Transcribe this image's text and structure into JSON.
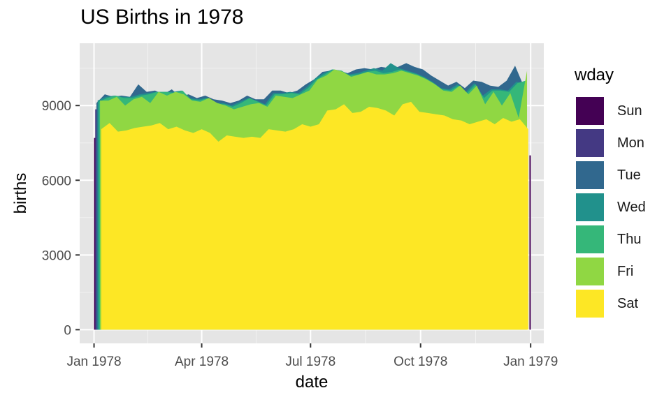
{
  "chart_data": {
    "type": "area",
    "stacked": true,
    "title": "US Births in 1978",
    "xlabel": "date",
    "ylabel": "births",
    "x_ticks": [
      "Jan 1978",
      "Apr 1978",
      "Jul 1978",
      "Oct 1978",
      "Jan 1979"
    ],
    "x_tick_dates": [
      "1978-01-01",
      "1978-04-01",
      "1978-07-01",
      "1978-10-01",
      "1979-01-01"
    ],
    "xlim": [
      "1977-12-20",
      "1979-01-12"
    ],
    "y_ticks": [
      0,
      3000,
      6000,
      9000
    ],
    "ylim": [
      -550,
      11500
    ],
    "grid": true,
    "background": "#e5e5e5",
    "legend": {
      "title": "wday",
      "placement": "right",
      "order": [
        "Sun",
        "Mon",
        "Tue",
        "Wed",
        "Thu",
        "Fri",
        "Sat"
      ]
    },
    "colors": {
      "Sun": "#440154",
      "Mon": "#443983",
      "Tue": "#31688e",
      "Wed": "#21918c",
      "Thu": "#35b779",
      "Fri": "#90d743",
      "Sat": "#fde725"
    },
    "stack_top_down": [
      "Sun",
      "Mon",
      "Tue",
      "Wed",
      "Thu",
      "Fri",
      "Sat"
    ],
    "series_summary": [
      {
        "name": "Sun",
        "values": [
          7700,
          0
        ]
      },
      {
        "name": "Mon",
        "values": [
          8850,
          9150
        ]
      },
      {
        "name": "Tue",
        "values": [
          9450,
          9500
        ]
      },
      {
        "name": "Wed",
        "values": [
          9200,
          9100
        ]
      },
      {
        "name": "Thu",
        "values": [
          9300,
          10000
        ]
      },
      {
        "name": "Fri",
        "values": [
          9200,
          10400
        ]
      },
      {
        "name": "Sat",
        "values": [
          8150,
          8050
        ]
      }
    ],
    "envelopes": {
      "Sat": [
        [
          "1978-01-07",
          8050
        ],
        [
          "1978-01-14",
          8300
        ],
        [
          "1978-01-21",
          7950
        ],
        [
          "1978-01-28",
          8000
        ],
        [
          "1978-02-04",
          8100
        ],
        [
          "1978-02-11",
          8150
        ],
        [
          "1978-02-18",
          8200
        ],
        [
          "1978-02-25",
          8300
        ],
        [
          "1978-03-04",
          8050
        ],
        [
          "1978-03-11",
          8150
        ],
        [
          "1978-03-18",
          8000
        ],
        [
          "1978-03-25",
          7900
        ],
        [
          "1978-04-01",
          8050
        ],
        [
          "1978-04-08",
          7900
        ],
        [
          "1978-04-15",
          7550
        ],
        [
          "1978-04-22",
          7800
        ],
        [
          "1978-04-29",
          7750
        ],
        [
          "1978-05-06",
          7700
        ],
        [
          "1978-05-13",
          7750
        ],
        [
          "1978-05-20",
          7700
        ],
        [
          "1978-05-27",
          8050
        ],
        [
          "1978-06-03",
          8000
        ],
        [
          "1978-06-10",
          7950
        ],
        [
          "1978-06-17",
          8050
        ],
        [
          "1978-06-24",
          8250
        ],
        [
          "1978-07-01",
          8150
        ],
        [
          "1978-07-08",
          8250
        ],
        [
          "1978-07-15",
          8800
        ],
        [
          "1978-07-22",
          8850
        ],
        [
          "1978-07-29",
          9050
        ],
        [
          "1978-08-05",
          8700
        ],
        [
          "1978-08-12",
          8750
        ],
        [
          "1978-08-19",
          8950
        ],
        [
          "1978-08-26",
          8900
        ],
        [
          "1978-09-02",
          8800
        ],
        [
          "1978-09-09",
          8600
        ],
        [
          "1978-09-16",
          9050
        ],
        [
          "1978-09-23",
          9150
        ],
        [
          "1978-09-30",
          8750
        ],
        [
          "1978-10-07",
          8700
        ],
        [
          "1978-10-14",
          8650
        ],
        [
          "1978-10-21",
          8600
        ],
        [
          "1978-10-28",
          8450
        ],
        [
          "1978-11-04",
          8400
        ],
        [
          "1978-11-11",
          8250
        ],
        [
          "1978-11-18",
          8350
        ],
        [
          "1978-11-25",
          8450
        ],
        [
          "1978-12-02",
          8250
        ],
        [
          "1978-12-09",
          8500
        ],
        [
          "1978-12-16",
          8350
        ],
        [
          "1978-12-23",
          8450
        ],
        [
          "1978-12-30",
          8050
        ]
      ],
      "Fri": [
        [
          "1978-01-06",
          9200
        ],
        [
          "1978-01-13",
          9200
        ],
        [
          "1978-01-20",
          9350
        ],
        [
          "1978-01-27",
          9000
        ],
        [
          "1978-02-03",
          9250
        ],
        [
          "1978-02-10",
          9350
        ],
        [
          "1978-02-17",
          9100
        ],
        [
          "1978-02-24",
          9550
        ],
        [
          "1978-03-03",
          9400
        ],
        [
          "1978-03-10",
          9550
        ],
        [
          "1978-03-17",
          9450
        ],
        [
          "1978-03-24",
          9200
        ],
        [
          "1978-03-31",
          9150
        ],
        [
          "1978-04-07",
          9300
        ],
        [
          "1978-04-14",
          9100
        ],
        [
          "1978-04-21",
          9000
        ],
        [
          "1978-04-28",
          8850
        ],
        [
          "1978-05-05",
          8950
        ],
        [
          "1978-05-12",
          9050
        ],
        [
          "1978-05-19",
          9100
        ],
        [
          "1978-05-26",
          8950
        ],
        [
          "1978-06-02",
          9400
        ],
        [
          "1978-06-09",
          9350
        ],
        [
          "1978-06-16",
          9300
        ],
        [
          "1978-06-23",
          9450
        ],
        [
          "1978-06-30",
          9600
        ],
        [
          "1978-07-07",
          10050
        ],
        [
          "1978-07-14",
          10200
        ],
        [
          "1978-07-21",
          10450
        ],
        [
          "1978-07-28",
          10350
        ],
        [
          "1978-08-04",
          10150
        ],
        [
          "1978-08-11",
          10250
        ],
        [
          "1978-08-18",
          10350
        ],
        [
          "1978-08-25",
          10250
        ],
        [
          "1978-09-01",
          10250
        ],
        [
          "1978-09-08",
          10300
        ],
        [
          "1978-09-15",
          10400
        ],
        [
          "1978-09-22",
          10300
        ],
        [
          "1978-09-29",
          10200
        ],
        [
          "1978-10-06",
          10050
        ],
        [
          "1978-10-13",
          9850
        ],
        [
          "1978-10-20",
          9600
        ],
        [
          "1978-10-27",
          9550
        ],
        [
          "1978-11-03",
          9800
        ],
        [
          "1978-11-10",
          9450
        ],
        [
          "1978-11-17",
          9800
        ],
        [
          "1978-11-24",
          9050
        ],
        [
          "1978-12-01",
          9550
        ],
        [
          "1978-12-08",
          9000
        ],
        [
          "1978-12-15",
          9500
        ],
        [
          "1978-12-22",
          8500
        ],
        [
          "1978-12-29",
          10400
        ]
      ],
      "Thu": [
        [
          "1978-01-05",
          9150
        ],
        [
          "1978-01-12",
          9300
        ],
        [
          "1978-01-19",
          9400
        ],
        [
          "1978-01-26",
          9300
        ],
        [
          "1978-02-02",
          9300
        ],
        [
          "1978-02-09",
          9400
        ],
        [
          "1978-02-16",
          9450
        ],
        [
          "1978-02-23",
          9550
        ],
        [
          "1978-03-02",
          9550
        ],
        [
          "1978-03-09",
          9500
        ],
        [
          "1978-03-16",
          9600
        ],
        [
          "1978-03-23",
          9250
        ],
        [
          "1978-03-30",
          9200
        ],
        [
          "1978-04-06",
          9300
        ],
        [
          "1978-04-13",
          9050
        ],
        [
          "1978-04-20",
          9050
        ],
        [
          "1978-04-27",
          8950
        ],
        [
          "1978-05-04",
          9100
        ],
        [
          "1978-05-11",
          9300
        ],
        [
          "1978-05-18",
          9150
        ],
        [
          "1978-05-25",
          9000
        ],
        [
          "1978-06-01",
          9450
        ],
        [
          "1978-06-08",
          9450
        ],
        [
          "1978-06-15",
          9500
        ],
        [
          "1978-06-22",
          9450
        ],
        [
          "1978-06-29",
          9700
        ],
        [
          "1978-07-06",
          10050
        ],
        [
          "1978-07-13",
          10250
        ],
        [
          "1978-07-20",
          10450
        ],
        [
          "1978-07-27",
          10400
        ],
        [
          "1978-08-03",
          10200
        ],
        [
          "1978-08-10",
          10250
        ],
        [
          "1978-08-17",
          10350
        ],
        [
          "1978-08-24",
          10400
        ],
        [
          "1978-08-31",
          10300
        ],
        [
          "1978-09-07",
          10350
        ],
        [
          "1978-09-14",
          10450
        ],
        [
          "1978-09-21",
          10350
        ],
        [
          "1978-09-28",
          10250
        ],
        [
          "1978-10-05",
          10100
        ],
        [
          "1978-10-12",
          9900
        ],
        [
          "1978-10-19",
          9650
        ],
        [
          "1978-10-26",
          9600
        ],
        [
          "1978-11-02",
          9800
        ],
        [
          "1978-11-09",
          9500
        ],
        [
          "1978-11-16",
          9850
        ],
        [
          "1978-11-23",
          9300
        ],
        [
          "1978-11-30",
          9600
        ],
        [
          "1978-12-07",
          9600
        ],
        [
          "1978-12-14",
          9550
        ],
        [
          "1978-12-21",
          9900
        ],
        [
          "1978-12-28",
          10000
        ]
      ],
      "Wed": [
        [
          "1978-01-04",
          9200
        ],
        [
          "1978-01-11",
          9350
        ],
        [
          "1978-01-18",
          9400
        ],
        [
          "1978-01-25",
          9350
        ],
        [
          "1978-02-01",
          9350
        ],
        [
          "1978-02-08",
          9450
        ],
        [
          "1978-02-15",
          9500
        ],
        [
          "1978-02-22",
          9550
        ],
        [
          "1978-03-01",
          9550
        ],
        [
          "1978-03-08",
          9550
        ],
        [
          "1978-03-15",
          9600
        ],
        [
          "1978-03-22",
          9300
        ],
        [
          "1978-03-29",
          9250
        ],
        [
          "1978-04-05",
          9300
        ],
        [
          "1978-04-12",
          9100
        ],
        [
          "1978-04-19",
          9100
        ],
        [
          "1978-04-26",
          9000
        ],
        [
          "1978-05-03",
          9150
        ],
        [
          "1978-05-10",
          9300
        ],
        [
          "1978-05-17",
          9200
        ],
        [
          "1978-05-24",
          9050
        ],
        [
          "1978-05-31",
          9500
        ],
        [
          "1978-06-07",
          9500
        ],
        [
          "1978-06-14",
          9550
        ],
        [
          "1978-06-21",
          9500
        ],
        [
          "1978-06-28",
          9750
        ],
        [
          "1978-07-05",
          10100
        ],
        [
          "1978-07-12",
          10300
        ],
        [
          "1978-07-19",
          10450
        ],
        [
          "1978-07-26",
          10400
        ],
        [
          "1978-08-02",
          10250
        ],
        [
          "1978-08-09",
          10300
        ],
        [
          "1978-08-16",
          10400
        ],
        [
          "1978-08-23",
          10500
        ],
        [
          "1978-08-30",
          10400
        ],
        [
          "1978-09-06",
          10700
        ],
        [
          "1978-09-13",
          10500
        ],
        [
          "1978-09-20",
          10400
        ],
        [
          "1978-09-27",
          10300
        ],
        [
          "1978-10-04",
          10150
        ],
        [
          "1978-10-11",
          9950
        ],
        [
          "1978-10-18",
          9700
        ],
        [
          "1978-10-25",
          9650
        ],
        [
          "1978-11-01",
          9850
        ],
        [
          "1978-11-08",
          9550
        ],
        [
          "1978-11-15",
          9900
        ],
        [
          "1978-11-22",
          9400
        ],
        [
          "1978-11-29",
          9650
        ],
        [
          "1978-12-06",
          9650
        ],
        [
          "1978-12-13",
          9600
        ],
        [
          "1978-12-20",
          9950
        ],
        [
          "1978-12-27",
          9900
        ]
      ],
      "Tue": [
        [
          "1978-01-03",
          9100
        ],
        [
          "1978-01-10",
          9450
        ],
        [
          "1978-01-17",
          9350
        ],
        [
          "1978-01-24",
          9400
        ],
        [
          "1978-01-31",
          9350
        ],
        [
          "1978-02-07",
          9850
        ],
        [
          "1978-02-14",
          9550
        ],
        [
          "1978-02-21",
          9600
        ],
        [
          "1978-02-28",
          9450
        ],
        [
          "1978-03-07",
          9650
        ],
        [
          "1978-03-14",
          9350
        ],
        [
          "1978-03-21",
          9450
        ],
        [
          "1978-03-28",
          9300
        ],
        [
          "1978-04-04",
          9400
        ],
        [
          "1978-04-11",
          9250
        ],
        [
          "1978-04-18",
          9200
        ],
        [
          "1978-04-25",
          9100
        ],
        [
          "1978-05-02",
          9200
        ],
        [
          "1978-05-09",
          9400
        ],
        [
          "1978-05-16",
          9250
        ],
        [
          "1978-05-23",
          9250
        ],
        [
          "1978-05-30",
          9600
        ],
        [
          "1978-06-06",
          9600
        ],
        [
          "1978-06-13",
          9500
        ],
        [
          "1978-06-20",
          9600
        ],
        [
          "1978-06-27",
          9850
        ],
        [
          "1978-07-04",
          10050
        ],
        [
          "1978-07-11",
          10350
        ],
        [
          "1978-07-18",
          10400
        ],
        [
          "1978-07-25",
          10400
        ],
        [
          "1978-08-01",
          10300
        ],
        [
          "1978-08-08",
          10450
        ],
        [
          "1978-08-15",
          10500
        ],
        [
          "1978-08-22",
          10450
        ],
        [
          "1978-08-29",
          10550
        ],
        [
          "1978-09-05",
          10500
        ],
        [
          "1978-09-12",
          10550
        ],
        [
          "1978-09-19",
          10700
        ],
        [
          "1978-09-26",
          10550
        ],
        [
          "1978-10-03",
          10450
        ],
        [
          "1978-10-10",
          10200
        ],
        [
          "1978-10-17",
          10000
        ],
        [
          "1978-10-24",
          9800
        ],
        [
          "1978-10-31",
          9950
        ],
        [
          "1978-11-07",
          9700
        ],
        [
          "1978-11-14",
          10000
        ],
        [
          "1978-11-21",
          9950
        ],
        [
          "1978-11-28",
          9800
        ],
        [
          "1978-12-05",
          9750
        ],
        [
          "1978-12-12",
          10000
        ],
        [
          "1978-12-19",
          10600
        ],
        [
          "1978-12-26",
          9800
        ]
      ],
      "Mon": [
        [
          "1978-01-02",
          8850
        ],
        [
          "1978-12-25",
          9150
        ]
      ],
      "Sun": [
        [
          "1978-01-01",
          7700
        ],
        [
          "1978-12-31",
          7000
        ]
      ]
    }
  }
}
